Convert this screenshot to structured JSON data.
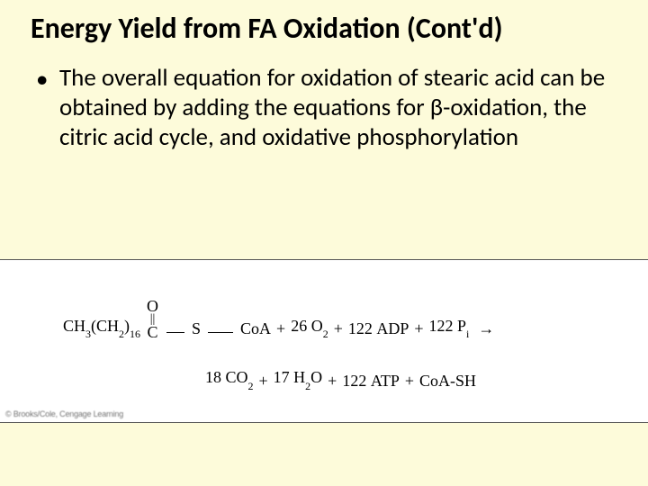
{
  "slide": {
    "background_color": "#fdfbda",
    "title": "Energy Yield from FA Oxidation (Cont'd)",
    "title_fontsize": 32,
    "bullet": {
      "marker": "•",
      "text_before_beta": "The overall equation for oxidation of stearic acid can be obtained by adding the equations for ",
      "beta": "β",
      "text_after_beta": "-oxidation, the citric acid cycle, and oxidative phosphorylation",
      "fontsize": 27
    }
  },
  "equation": {
    "background_color": "#ffffff",
    "font_family": "Times New Roman",
    "fontsize": 18,
    "reactants": {
      "ch3": "CH",
      "ch3_sub": "3",
      "ch2": "(CH",
      "ch2_sub_a": "2",
      "ch2_close": ")",
      "ch2_sub_b": "16",
      "carbonyl_O": "O",
      "carbonyl_dbl": "||",
      "carbonyl_C": "C",
      "S": "S",
      "CoA": "CoA",
      "plus1": "+",
      "o2_coef": "26",
      "o2": "O",
      "o2_sub": "2",
      "plus2": "+",
      "adp_coef": "122",
      "adp": "ADP",
      "plus3": "+",
      "pi_coef": "122",
      "pi_P": "P",
      "pi_i": "i",
      "arrow": "→"
    },
    "products": {
      "co2_coef": "18",
      "co2_C": "CO",
      "co2_sub": "2",
      "plus1": "+",
      "h2o_coef": "17",
      "h2o_H": "H",
      "h2o_sub": "2",
      "h2o_O": "O",
      "plus2": "+",
      "atp_coef": "122",
      "atp": "ATP",
      "plus3": "+",
      "coash": "CoA-SH"
    }
  },
  "copyright": "© Brooks/Cole, Cengage Learning"
}
